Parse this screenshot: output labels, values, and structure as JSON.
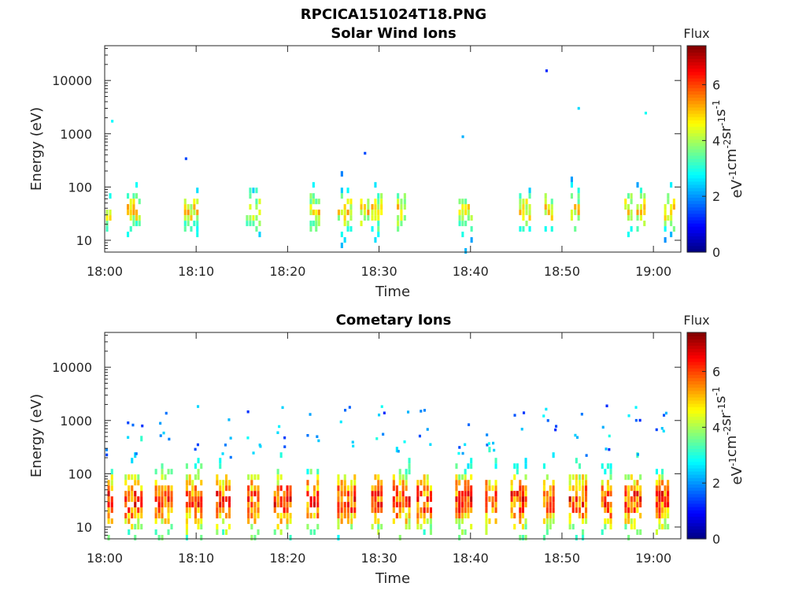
{
  "figure_title": "RPCICA151024T18.PNG",
  "chart_data": [
    {
      "type": "heatmap",
      "title": "Solar Wind Ions",
      "xlabel": "Time",
      "ylabel": "Energy (eV)",
      "yscale": "log",
      "xlim": [
        "18:00",
        "19:03"
      ],
      "ylim": [
        6,
        45000
      ],
      "x_ticks": [
        "18:00",
        "18:10",
        "18:20",
        "18:30",
        "18:40",
        "18:50",
        "19:00"
      ],
      "y_ticks": [
        {
          "value": 10,
          "label": "10"
        },
        {
          "value": 100,
          "label": "100"
        },
        {
          "value": 1000,
          "label": "1000"
        },
        {
          "value": 10000,
          "label": "10000"
        }
      ],
      "colorbar": {
        "title": "Flux",
        "label": "eV",
        "label_parts": [
          "eV",
          "-1",
          "cm",
          "-2",
          "sr",
          "-1",
          "s",
          "-1"
        ],
        "range": [
          0,
          7.4
        ],
        "ticks": [
          "0",
          "2",
          "4",
          "6"
        ],
        "colormap": "jet"
      },
      "bursts_minutes": [
        0.3,
        3.2,
        9.5,
        16.3,
        23.0,
        26.3,
        28.5,
        29.8,
        32.5,
        39.5,
        46.0,
        48.6,
        51.5,
        57.3,
        58.7,
        61.8
      ],
      "peak_flux_approx": 5.5
    },
    {
      "type": "heatmap",
      "title": "Cometary Ions",
      "xlabel": "Time",
      "ylabel": "Energy (eV)",
      "yscale": "log",
      "xlim": [
        "18:00",
        "19:03"
      ],
      "ylim": [
        6,
        45000
      ],
      "x_ticks": [
        "18:00",
        "18:10",
        "18:20",
        "18:30",
        "18:40",
        "18:50",
        "19:00"
      ],
      "y_ticks": [
        {
          "value": 10,
          "label": "10"
        },
        {
          "value": 100,
          "label": "100"
        },
        {
          "value": 1000,
          "label": "1000"
        },
        {
          "value": 10000,
          "label": "10000"
        }
      ],
      "colorbar": {
        "title": "Flux",
        "label": "eV",
        "label_parts": [
          "eV",
          "-1",
          "cm",
          "-2",
          "sr",
          "-1",
          "s",
          "-1"
        ],
        "range": [
          0,
          7.4
        ],
        "ticks": [
          "0",
          "2",
          "4",
          "6"
        ],
        "colormap": "jet"
      },
      "bursts_minutes": [
        0.3,
        3.2,
        6.5,
        9.8,
        13.0,
        16.3,
        19.5,
        22.8,
        26.5,
        29.8,
        32.5,
        35.0,
        39.3,
        42.3,
        45.3,
        48.6,
        51.8,
        54.9,
        57.8,
        61.0
      ],
      "peak_flux_approx": 7.0
    }
  ],
  "colors": {
    "background": "#ffffff",
    "axes": "#262626"
  }
}
